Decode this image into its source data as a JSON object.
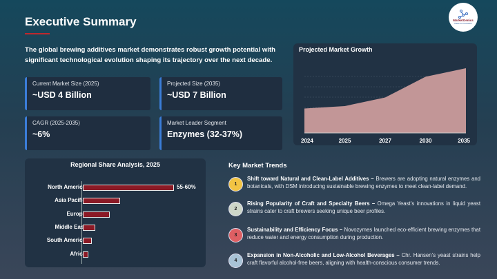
{
  "header": {
    "title": "Executive Summary",
    "logo_text": "MarketGenics",
    "logo_tagline": "Ideas to Innovation"
  },
  "intro": "The global brewing additives market demonstrates robust growth potential with significant technological evolution shaping its trajectory over the next decade.",
  "cards": [
    {
      "label": "Current Market Size (2025)",
      "value": "~USD 4 Billion"
    },
    {
      "label": "Projected Size (2035)",
      "value": "~USD 7 Billion"
    },
    {
      "label": "CAGR (2025-2035)",
      "value": "~6%"
    },
    {
      "label": "Market Leader Segment",
      "value": "Enzymes  (32-37%)"
    }
  ],
  "colors": {
    "accent": "#3b7dd8",
    "title_underline": "#c0282d",
    "bar": "#8b1a26",
    "area": "#c29697"
  },
  "chart_data": [
    {
      "type": "bar",
      "orientation": "horizontal",
      "title": "Regional Share Analysis, 2025",
      "categories": [
        "North America",
        "Asia Pacific",
        "Europe",
        "Middle East",
        "South America",
        "Africa"
      ],
      "values": [
        57.5,
        23.5,
        17,
        8,
        5.7,
        3.5
      ],
      "data_labels": [
        "55-60%",
        "",
        "",
        "",
        "",
        ""
      ],
      "xlim": [
        0,
        60
      ]
    },
    {
      "type": "area",
      "title": "Projected Market Growth",
      "categories": [
        "2024",
        "2025",
        "2027",
        "2030",
        "2035"
      ],
      "values": [
        2.0,
        2.2,
        2.9,
        4.6,
        5.3
      ],
      "ylim": [
        0,
        6.2
      ],
      "grid": true
    }
  ],
  "trends": {
    "title": "Key Market Trends",
    "items": [
      {
        "num": "1",
        "color": "#f2c443",
        "heading": "Shift toward Natural and Clean-Label Additives –",
        "text": " Brewers are adopting natural enzymes and botanicals, with DSM introducing sustainable brewing enzymes to meet clean-label demand."
      },
      {
        "num": "2",
        "color": "#cdd6c8",
        "heading": "Rising Popularity of Craft and Specialty Beers –",
        "text": " Omega Yeast’s innovations in liquid yeast strains cater to craft brewers seeking unique beer profiles."
      },
      {
        "num": "3",
        "color": "#de5f63",
        "heading": "Sustainability and Efficiency Focus –",
        "text": " Novozymes launched eco-efficient brewing enzymes that reduce water and energy consumption during production."
      },
      {
        "num": "4",
        "color": "#a8c3d6",
        "heading": "Expansion in Non-Alcoholic and Low-Alcohol Beverages –",
        "text": " Chr. Hansen’s yeast strains help craft flavorful alcohol-free beers, aligning with health-conscious consumer trends."
      }
    ]
  }
}
